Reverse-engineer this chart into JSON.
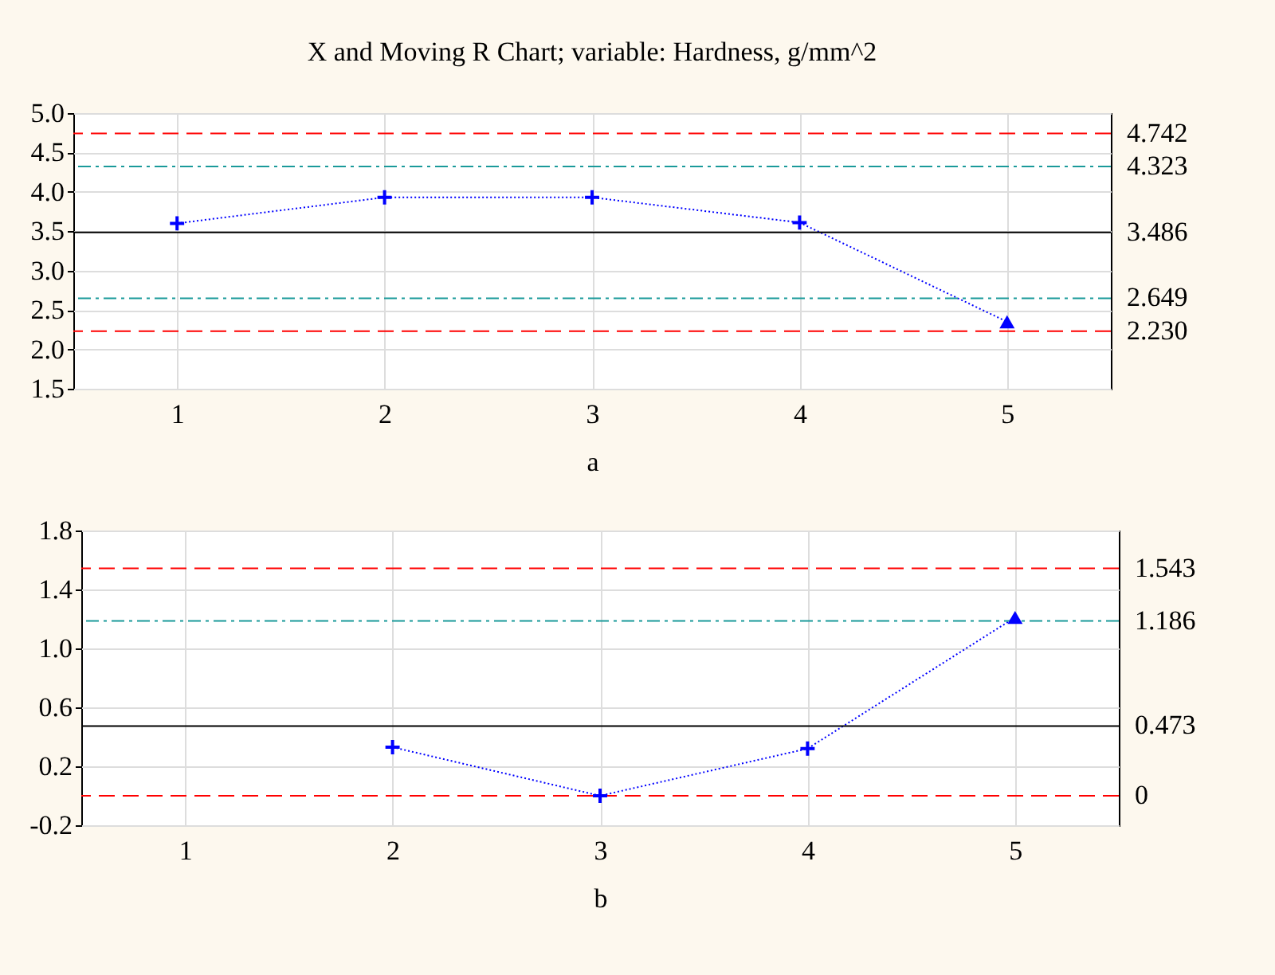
{
  "chart_data": [
    {
      "type": "line",
      "title": "X and Moving R Chart; variable: Hardness, g/mm^2",
      "xlabel": "a",
      "xlim": [
        0.5,
        5.5
      ],
      "xticks": [
        1,
        2,
        3,
        4,
        5
      ],
      "ylim": [
        1.5,
        5.0
      ],
      "yticks": [
        1.5,
        {
          "value": 2,
          "label": "2.0"
        },
        2.5,
        {
          "value": 3,
          "label": "3.0"
        },
        3.5,
        {
          "value": 4,
          "label": "4.0"
        },
        4.5,
        {
          "value": 5,
          "label": "5.0"
        }
      ],
      "grid": true,
      "series": [
        {
          "type": "line",
          "color": "#0000ff",
          "line_style": "dotted",
          "marker": "none",
          "x": [
            1,
            2,
            3,
            4,
            5
          ],
          "values": [
            3.6,
            3.93,
            3.93,
            3.61,
            2.35
          ]
        },
        {
          "type": "scatter",
          "color": "#0000ff",
          "marker": "cross",
          "x": [
            1,
            2,
            3,
            4
          ],
          "values": [
            3.6,
            3.93,
            3.93,
            3.61
          ]
        },
        {
          "type": "scatter",
          "color": "#0000ff",
          "marker": "triangle",
          "x": [
            5
          ],
          "values": [
            2.35
          ]
        }
      ],
      "ref_lines": [
        {
          "axis": "y",
          "value": 4.742,
          "label": "4.742",
          "color": "#ff0000",
          "line_style": "dashed"
        },
        {
          "axis": "y",
          "value": 4.323,
          "label": "4.323",
          "color": "#1a9a9a",
          "line_style": "dashdot"
        },
        {
          "axis": "y",
          "value": 3.486,
          "label": "3.486",
          "color": "#000000",
          "line_style": "solid"
        },
        {
          "axis": "y",
          "value": 2.649,
          "label": "2.649",
          "color": "#1a9a9a",
          "line_style": "dashdot"
        },
        {
          "axis": "y",
          "value": 2.23,
          "label": "2.230",
          "color": "#ff0000",
          "line_style": "dashed"
        }
      ]
    },
    {
      "type": "line",
      "xlabel": "b",
      "xlim": [
        0.5,
        5.5
      ],
      "xticks": [
        1,
        2,
        3,
        4,
        5
      ],
      "ylim": [
        -0.2,
        1.8
      ],
      "yticks": [
        -0.2,
        0.2,
        0.6,
        {
          "value": 1,
          "label": "1.0"
        },
        1.4,
        1.8
      ],
      "grid": true,
      "series": [
        {
          "type": "line",
          "color": "#0000ff",
          "line_style": "dotted",
          "marker": "none",
          "x": [
            2,
            3,
            4,
            5
          ],
          "values": [
            0.33,
            0,
            0.32,
            1.21
          ]
        },
        {
          "type": "scatter",
          "color": "#0000ff",
          "marker": "cross",
          "x": [
            2,
            3,
            4
          ],
          "values": [
            0.33,
            0,
            0.32
          ]
        },
        {
          "type": "scatter",
          "color": "#0000ff",
          "marker": "triangle",
          "x": [
            5
          ],
          "values": [
            1.21
          ]
        }
      ],
      "ref_lines": [
        {
          "axis": "y",
          "value": 1.543,
          "label": "1.543",
          "color": "#ff0000",
          "line_style": "dashed"
        },
        {
          "axis": "y",
          "value": 1.186,
          "label": "1.186",
          "color": "#1a9a9a",
          "line_style": "dashdot"
        },
        {
          "axis": "y",
          "value": 0.473,
          "label": "0.473",
          "color": "#000000",
          "line_style": "solid"
        },
        {
          "axis": "y",
          "value": 0,
          "label": "0",
          "color": "#ff0000",
          "line_style": "dashed"
        }
      ]
    }
  ]
}
